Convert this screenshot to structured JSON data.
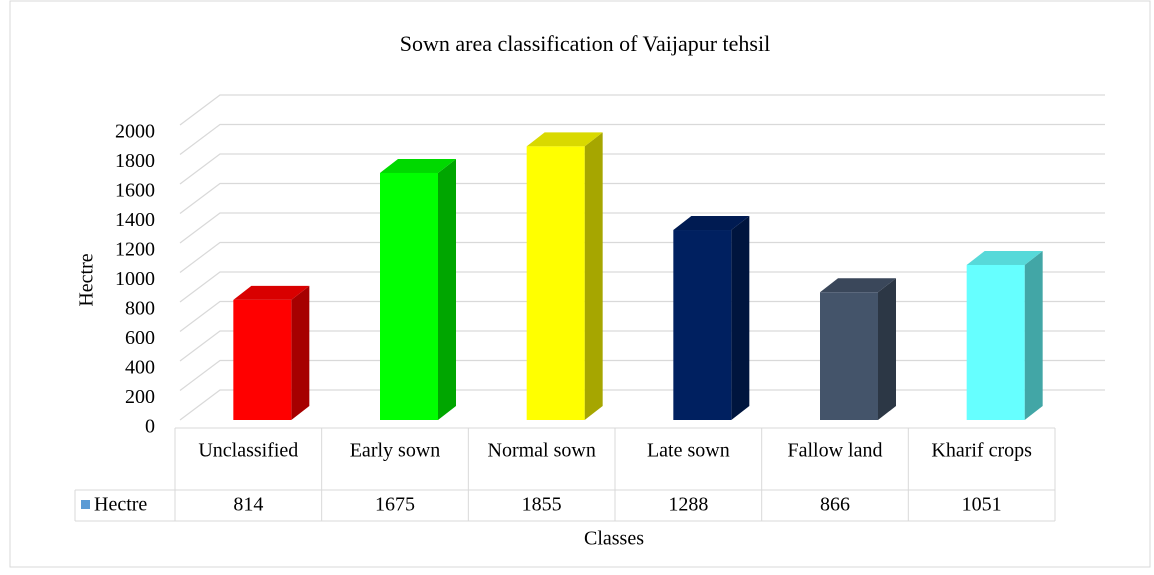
{
  "chart_data": {
    "type": "bar3d",
    "title": "Sown area classification  of Vaijapur tehsil",
    "x_label": "Classes",
    "y_label": "Hectre",
    "categories": [
      "Unclassified",
      "Early sown",
      "Normal sown",
      "Late sown",
      "Fallow land",
      "Kharif crops"
    ],
    "series": [
      {
        "name": "Hectre",
        "color": "#5b9bd5",
        "values": [
          814,
          1675,
          1855,
          1288,
          866,
          1051
        ],
        "colors": [
          "#ff0000",
          "#00ff00",
          "#ffff00",
          "#002060",
          "#44546a",
          "#66ffff"
        ]
      }
    ],
    "ylim": [
      0,
      2000
    ],
    "yticks": [
      0,
      200,
      400,
      600,
      800,
      1000,
      1200,
      1400,
      1600,
      1800,
      2000
    ],
    "grid": true,
    "data_table": true
  }
}
